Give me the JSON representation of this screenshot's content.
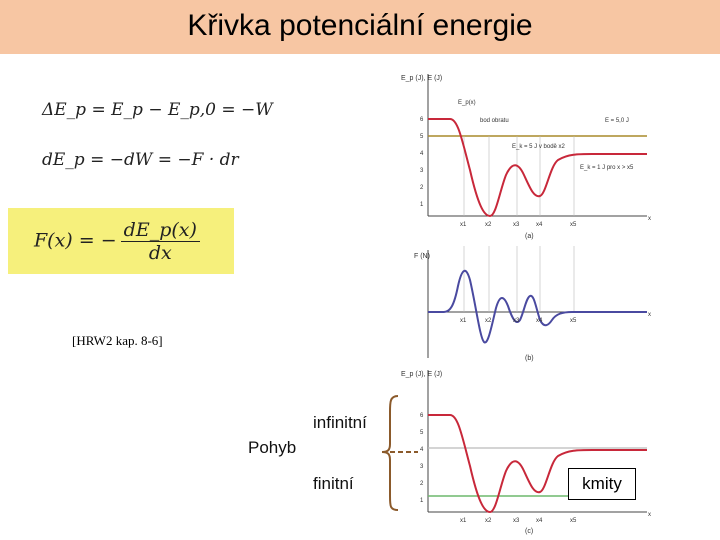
{
  "title": "Křivka potenciální energie",
  "equations": {
    "eq1": "ΔE_p = E_p − E_p,0 = −W",
    "eq2": "dE_p = −dW = −F · dr",
    "eq3_lhs": "F(x) = −",
    "eq3_num": "dE_p(x)",
    "eq3_den": "dx"
  },
  "reference": "[HRW2 kap. 8-6]",
  "motion": {
    "label": "Pohyb",
    "infinite": "infinitní",
    "finite": "finitní",
    "oscillations": "kmity"
  },
  "graph_a": {
    "ylabel": "E_p (J), E (J)",
    "yticks": [
      "6",
      "5",
      "4",
      "3",
      "2",
      "1"
    ],
    "xticks": [
      "x1",
      "x2",
      "x3",
      "x4",
      "x5"
    ],
    "xaxis": "x",
    "caption": "(a)",
    "annotations": {
      "curve": "E_p(x)",
      "turning_point": "bod obratu",
      "energy_line": "E = 5,0 J",
      "kinetic_at": "E_k = 5 J v bodě x2",
      "kinetic_far": "E_k = 1 J pro x > x5"
    },
    "colors": {
      "curve": "#c8283a",
      "energy": "#a98a2a"
    }
  },
  "graph_b": {
    "ylabel": "F (N)",
    "xticks": [
      "x1",
      "x2",
      "x3",
      "x4",
      "x5"
    ],
    "xaxis": "x",
    "caption": "(b)",
    "colors": {
      "curve": "#4a4aa0"
    }
  },
  "graph_c": {
    "ylabel": "E_p (J), E (J)",
    "yticks": [
      "6",
      "5",
      "4",
      "3",
      "2",
      "1"
    ],
    "xticks": [
      "x1",
      "x2",
      "x3",
      "x4",
      "x5"
    ],
    "xaxis": "x",
    "caption": "(c)",
    "colors": {
      "curve": "#c8283a",
      "level_high": "#bbbbbb",
      "level_low": "#6db86d"
    }
  },
  "colors": {
    "title_bar": "#f7c6a3",
    "highlight": "#f6f07c",
    "brace": "#8b5a2b"
  }
}
